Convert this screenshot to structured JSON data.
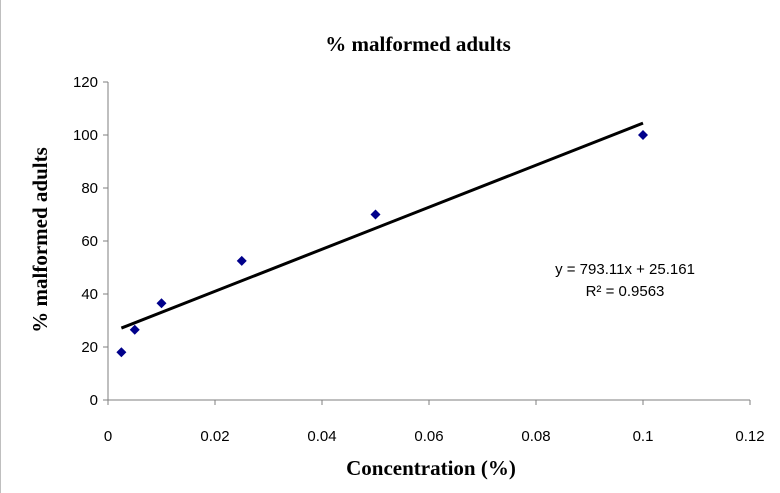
{
  "chart_data": {
    "type": "scatter",
    "title": "% malformed adults",
    "xlabel": "Concentration (%)",
    "ylabel": "% malformed adults",
    "xlim": [
      0,
      0.12
    ],
    "ylim": [
      0,
      120
    ],
    "x_ticks": [
      "0",
      "0.02",
      "0.04",
      "0.06",
      "0.08",
      "0.1",
      "0.12"
    ],
    "y_ticks": [
      "0",
      "20",
      "40",
      "60",
      "80",
      "100",
      "120"
    ],
    "grid": false,
    "legend": "none",
    "series": [
      {
        "marker": "diamond",
        "color": "#00008B",
        "points": [
          {
            "x": 0.0025,
            "y": 18
          },
          {
            "x": 0.005,
            "y": 26.5
          },
          {
            "x": 0.01,
            "y": 36.5
          },
          {
            "x": 0.025,
            "y": 52.5
          },
          {
            "x": 0.05,
            "y": 70
          },
          {
            "x": 0.1,
            "y": 100
          }
        ]
      }
    ],
    "trendline": {
      "type": "linear",
      "slope": 793.11,
      "intercept": 25.161,
      "x_range": [
        0.0025,
        0.1
      ],
      "color": "#000000"
    },
    "annotations": {
      "equation": "y = 793.11x  + 25.161",
      "r_squared": "R² = 0.9563"
    }
  }
}
